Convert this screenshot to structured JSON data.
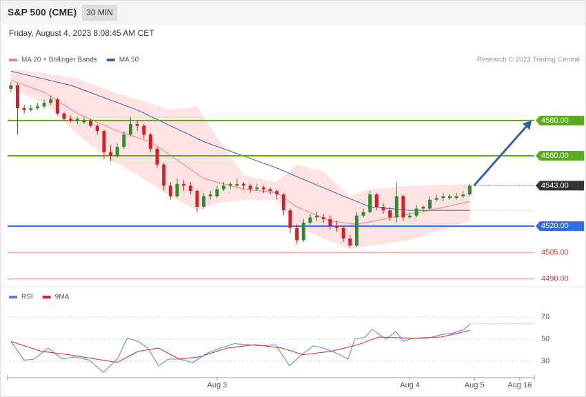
{
  "chart_data": [
    {
      "type": "candlestick",
      "title": "S&P 500 (CME)",
      "timeframe": "30 MIN",
      "subtitle": "Friday, August 4, 2023 8:08:45 AM CET",
      "source": "Research © 2023 Trading Central",
      "up_color": "#2e8b2e",
      "down_color": "#d0202a",
      "xlim": [
        -0.5,
        78.7
      ],
      "ylim": [
        4486,
        4623
      ],
      "candles": [
        [
          4598,
          4602,
          4596,
          4600
        ],
        [
          4600,
          4601,
          4572,
          4587
        ],
        [
          4587,
          4589,
          4584,
          4586
        ],
        [
          4586,
          4589,
          4585,
          4587
        ],
        [
          4587,
          4590,
          4586,
          4588
        ],
        [
          4588,
          4592,
          4587,
          4590
        ],
        [
          4590,
          4594,
          4589,
          4592
        ],
        [
          4592,
          4593,
          4583,
          4584
        ],
        [
          4584,
          4585,
          4580,
          4581
        ],
        [
          4581,
          4583,
          4579,
          4580
        ],
        [
          4580,
          4582,
          4578,
          4581
        ],
        [
          4579,
          4582,
          4578,
          4580
        ],
        [
          4580,
          4581,
          4576,
          4577
        ],
        [
          4577,
          4578,
          4572,
          4574
        ],
        [
          4574,
          4575,
          4558,
          4562
        ],
        [
          4562,
          4566,
          4557,
          4560
        ],
        [
          4560,
          4567,
          4559,
          4565
        ],
        [
          4565,
          4574,
          4564,
          4572
        ],
        [
          4572,
          4582,
          4571,
          4578
        ],
        [
          4578,
          4580,
          4574,
          4577
        ],
        [
          4577,
          4578,
          4570,
          4572
        ],
        [
          4572,
          4573,
          4562,
          4564
        ],
        [
          4564,
          4565,
          4553,
          4555
        ],
        [
          4555,
          4556,
          4540,
          4543
        ],
        [
          4543,
          4545,
          4535,
          4537
        ],
        [
          4537,
          4547,
          4536,
          4544
        ],
        [
          4544,
          4546,
          4540,
          4543
        ],
        [
          4543,
          4545,
          4538,
          4540
        ],
        [
          4540,
          4541,
          4528,
          4531
        ],
        [
          4531,
          4539,
          4530,
          4537
        ],
        [
          4537,
          4540,
          4535,
          4538
        ],
        [
          4537,
          4543,
          4536,
          4541
        ],
        [
          4541,
          4545,
          4540,
          4543
        ],
        [
          4543,
          4545,
          4541,
          4544
        ],
        [
          4543,
          4547,
          4542,
          4544
        ],
        [
          4544,
          4545,
          4541,
          4543
        ],
        [
          4543,
          4544,
          4539,
          4541
        ],
        [
          4541,
          4544,
          4540,
          4542
        ],
        [
          4542,
          4543,
          4539,
          4541
        ],
        [
          4541,
          4542,
          4538,
          4540
        ],
        [
          4540,
          4541,
          4535,
          4538
        ],
        [
          4538,
          4539,
          4526,
          4529
        ],
        [
          4529,
          4530,
          4516,
          4519
        ],
        [
          4519,
          4521,
          4510,
          4512
        ],
        [
          4512,
          4524,
          4511,
          4522
        ],
        [
          4522,
          4527,
          4521,
          4525
        ],
        [
          4525,
          4528,
          4523,
          4526
        ],
        [
          4525,
          4527,
          4522,
          4524
        ],
        [
          4524,
          4526,
          4518,
          4520
        ],
        [
          4520,
          4523,
          4517,
          4519
        ],
        [
          4519,
          4520,
          4511,
          4513
        ],
        [
          4513,
          4515,
          4508,
          4509
        ],
        [
          4509,
          4528,
          4508,
          4526
        ],
        [
          4526,
          4530,
          4525,
          4528
        ],
        [
          4528,
          4540,
          4527,
          4538
        ],
        [
          4538,
          4539,
          4529,
          4531
        ],
        [
          4531,
          4533,
          4527,
          4529
        ],
        [
          4529,
          4531,
          4523,
          4525
        ],
        [
          4525,
          4545,
          4522,
          4537
        ],
        [
          4537,
          4538,
          4523,
          4525
        ],
        [
          4525,
          4528,
          4524,
          4526
        ],
        [
          4526,
          4532,
          4525,
          4530
        ],
        [
          4530,
          4532,
          4528,
          4531
        ],
        [
          4530,
          4537,
          4529,
          4535
        ],
        [
          4535,
          4538,
          4534,
          4536
        ],
        [
          4536,
          4539,
          4534,
          4537
        ],
        [
          4536,
          4538,
          4535,
          4537
        ],
        [
          4536,
          4539,
          4535,
          4537
        ],
        [
          4537,
          4540,
          4536,
          4538
        ],
        [
          4538,
          4544,
          4537,
          4543
        ]
      ],
      "band": {
        "color": "#ffe3e3",
        "x": [
          0,
          5,
          10,
          14,
          19,
          24,
          28,
          31,
          35,
          40,
          43,
          47,
          51,
          54,
          60,
          69
        ],
        "upper": [
          4609,
          4607,
          4604,
          4598,
          4592,
          4586,
          4588,
          4570,
          4549,
          4545,
          4555,
          4551,
          4537,
          4541,
          4543,
          4544
        ],
        "lower": [
          4598,
          4590,
          4572,
          4560,
          4549,
          4537,
          4529,
          4533,
          4535,
          4535,
          4519,
          4513,
          4507,
          4509,
          4512,
          4523
        ]
      },
      "series": [
        {
          "name": "MA 20 + Bollinger Bands",
          "color": "#f08080",
          "x": [
            0,
            5,
            10,
            16,
            21,
            26,
            29,
            35,
            40,
            43,
            48,
            52,
            56,
            63,
            69
          ],
          "values": [
            4603,
            4596,
            4584,
            4574,
            4568,
            4555,
            4547,
            4541,
            4539,
            4531,
            4523,
            4521,
            4524,
            4529,
            4534
          ]
        },
        {
          "name": "MA 50",
          "color": "#3b5ea8",
          "x": [
            0,
            9,
            19,
            29,
            40,
            50,
            54,
            60,
            69
          ],
          "values": [
            4608,
            4600,
            4586,
            4568,
            4553,
            4537,
            4531,
            4529,
            4529
          ]
        }
      ],
      "levels": [
        {
          "value": 4580,
          "label": "4580.00",
          "color": "#5aaa1e",
          "boxed": true
        },
        {
          "value": 4560,
          "label": "4560.00",
          "color": "#5aaa1e",
          "boxed": true
        },
        {
          "value": 4543,
          "label": "4543.00",
          "color": "#333333",
          "boxed": true,
          "style": "dotted"
        },
        {
          "value": 4520,
          "label": "4520.00",
          "color": "#2f6fe0",
          "boxed": true
        },
        {
          "value": 4505,
          "label": "4505.00",
          "color": "#f4a8a8",
          "text_color": "#e03030",
          "boxed": false
        },
        {
          "value": 4490,
          "label": "4490.00",
          "color": "#f4a8a8",
          "text_color": "#e03030",
          "boxed": false
        }
      ],
      "forecast_color": "#2f5fa8"
    },
    {
      "type": "line",
      "xlim": [
        -0.5,
        78.7
      ],
      "ylim": [
        17,
        82.6
      ],
      "yticks": [
        30,
        50,
        70
      ],
      "grid": true,
      "xticks": [
        {
          "value": 31,
          "label": "Aug 3"
        },
        {
          "value": 60,
          "label": "Aug 4"
        },
        {
          "value": 69.7,
          "label": "Aug 5"
        },
        {
          "value": 76.5,
          "label": "Aug 16"
        }
      ],
      "series": [
        {
          "name": "RSI",
          "color": "#5b7fd6",
          "x": [
            0,
            2,
            3.5,
            5.6,
            7.7,
            9.7,
            11.8,
            13.9,
            16,
            17.5,
            19.1,
            20.6,
            22.2,
            23.7,
            25.3,
            27.4,
            29.4,
            31.5,
            33.6,
            35.6,
            37.7,
            39.8,
            41.9,
            43.9,
            45.5,
            47,
            49.1,
            50.7,
            51.7,
            53.3,
            54.3,
            56.4,
            57.9,
            59,
            60.5,
            62.6,
            64.7,
            66.7,
            68.2,
            69
          ],
          "values": [
            48,
            31,
            32,
            42,
            32,
            34,
            31,
            20,
            32,
            51,
            48,
            42,
            26,
            32,
            32,
            29,
            37,
            42,
            46,
            45,
            44,
            45,
            26,
            37,
            44,
            42,
            37,
            32,
            50,
            52,
            59,
            50,
            57,
            48,
            51,
            51,
            54,
            56,
            59,
            64
          ]
        },
        {
          "name": "9MA",
          "color": "#e02020",
          "x": [
            0,
            4.6,
            8.7,
            12.8,
            16,
            19.1,
            22.2,
            25.3,
            28.4,
            32.5,
            36.7,
            40.8,
            43.9,
            48.1,
            52.2,
            55.3,
            60.5,
            64.7,
            69
          ],
          "values": [
            48,
            39,
            36,
            32,
            29,
            39,
            42,
            32,
            34,
            42,
            45,
            42,
            36,
            39,
            45,
            52,
            51,
            52,
            58
          ]
        }
      ]
    }
  ]
}
